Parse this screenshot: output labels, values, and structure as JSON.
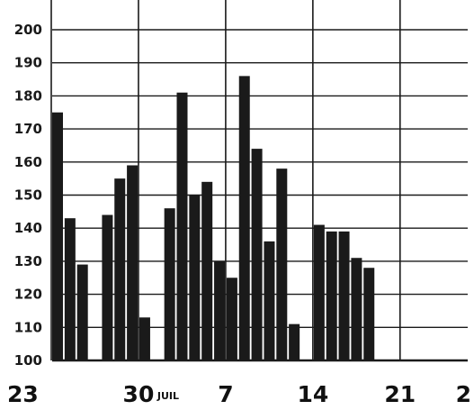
{
  "chart_data": {
    "type": "bar",
    "ylim": [
      100,
      200
    ],
    "yticks": [
      100,
      110,
      120,
      130,
      140,
      150,
      160,
      170,
      180,
      190,
      200
    ],
    "grid": true,
    "bar_color": "#1a1a1a",
    "grid_color": "#1a1a1a",
    "x_tick_labels": [
      {
        "day": 23,
        "label": "23"
      },
      {
        "day": 30,
        "label": "30"
      },
      {
        "day": 37,
        "label": "7"
      },
      {
        "day": 44,
        "label": "14"
      },
      {
        "day": 51,
        "label": "21"
      },
      {
        "day": 58,
        "label": "2"
      }
    ],
    "month_label": {
      "after_day": 30,
      "label": "JUIL"
    },
    "bars": [
      {
        "day": 23,
        "value": 175
      },
      {
        "day": 24,
        "value": 143
      },
      {
        "day": 25,
        "value": 129
      },
      {
        "day": 27,
        "value": 144
      },
      {
        "day": 28,
        "value": 155
      },
      {
        "day": 29,
        "value": 159
      },
      {
        "day": 30,
        "value": 113
      },
      {
        "day": 32,
        "value": 146
      },
      {
        "day": 33,
        "value": 181
      },
      {
        "day": 34,
        "value": 150
      },
      {
        "day": 35,
        "value": 154
      },
      {
        "day": 36,
        "value": 130
      },
      {
        "day": 37,
        "value": 125
      },
      {
        "day": 38,
        "value": 186
      },
      {
        "day": 39,
        "value": 164
      },
      {
        "day": 40,
        "value": 136
      },
      {
        "day": 41,
        "value": 158
      },
      {
        "day": 42,
        "value": 111
      },
      {
        "day": 44,
        "value": 141
      },
      {
        "day": 45,
        "value": 139
      },
      {
        "day": 46,
        "value": 139
      },
      {
        "day": 47,
        "value": 131
      },
      {
        "day": 48,
        "value": 128
      }
    ]
  }
}
